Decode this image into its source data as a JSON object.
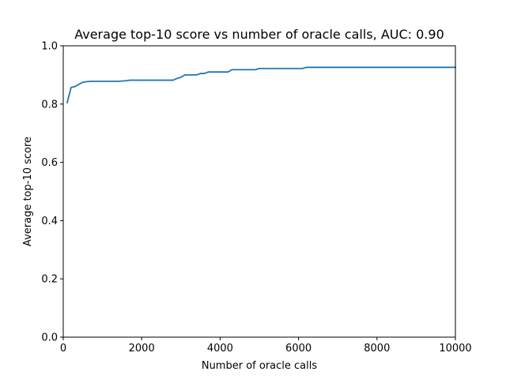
{
  "chart_data": {
    "type": "line",
    "title": "Average top-10 score vs number of oracle calls, AUC: 0.90",
    "xlabel": "Number of oracle calls",
    "ylabel": "Average top-10 score",
    "xlim": [
      0,
      10000
    ],
    "ylim": [
      0.0,
      1.0
    ],
    "x_ticks": [
      0,
      2000,
      4000,
      6000,
      8000,
      10000
    ],
    "x_tick_labels": [
      "0",
      "2000",
      "4000",
      "6000",
      "8000",
      "10000"
    ],
    "y_ticks": [
      0.0,
      0.2,
      0.4,
      0.6,
      0.8,
      1.0
    ],
    "y_tick_labels": [
      "0.0",
      "0.2",
      "0.4",
      "0.6",
      "0.8",
      "1.0"
    ],
    "grid": false,
    "legend": false,
    "series": [
      {
        "color": "#1f77b4",
        "x": [
          100,
          200,
          300,
          400,
          500,
          600,
          700,
          800,
          900,
          1000,
          1200,
          1400,
          1500,
          1600,
          1700,
          1800,
          2000,
          2200,
          2400,
          2600,
          2800,
          2900,
          3000,
          3100,
          3200,
          3300,
          3400,
          3500,
          3600,
          3700,
          3800,
          3900,
          4000,
          4200,
          4300,
          4400,
          4600,
          4800,
          4900,
          5000,
          5200,
          5400,
          5600,
          5800,
          6000,
          6100,
          6200,
          6400,
          7000,
          8000,
          9000,
          10000
        ],
        "y": [
          0.805,
          0.857,
          0.86,
          0.868,
          0.875,
          0.877,
          0.878,
          0.878,
          0.878,
          0.878,
          0.878,
          0.878,
          0.879,
          0.88,
          0.882,
          0.882,
          0.882,
          0.882,
          0.882,
          0.882,
          0.882,
          0.888,
          0.892,
          0.9,
          0.9,
          0.9,
          0.9,
          0.905,
          0.905,
          0.91,
          0.91,
          0.91,
          0.91,
          0.91,
          0.918,
          0.918,
          0.918,
          0.918,
          0.918,
          0.922,
          0.922,
          0.922,
          0.922,
          0.922,
          0.922,
          0.922,
          0.926,
          0.926,
          0.926,
          0.926,
          0.926,
          0.926
        ]
      }
    ]
  }
}
